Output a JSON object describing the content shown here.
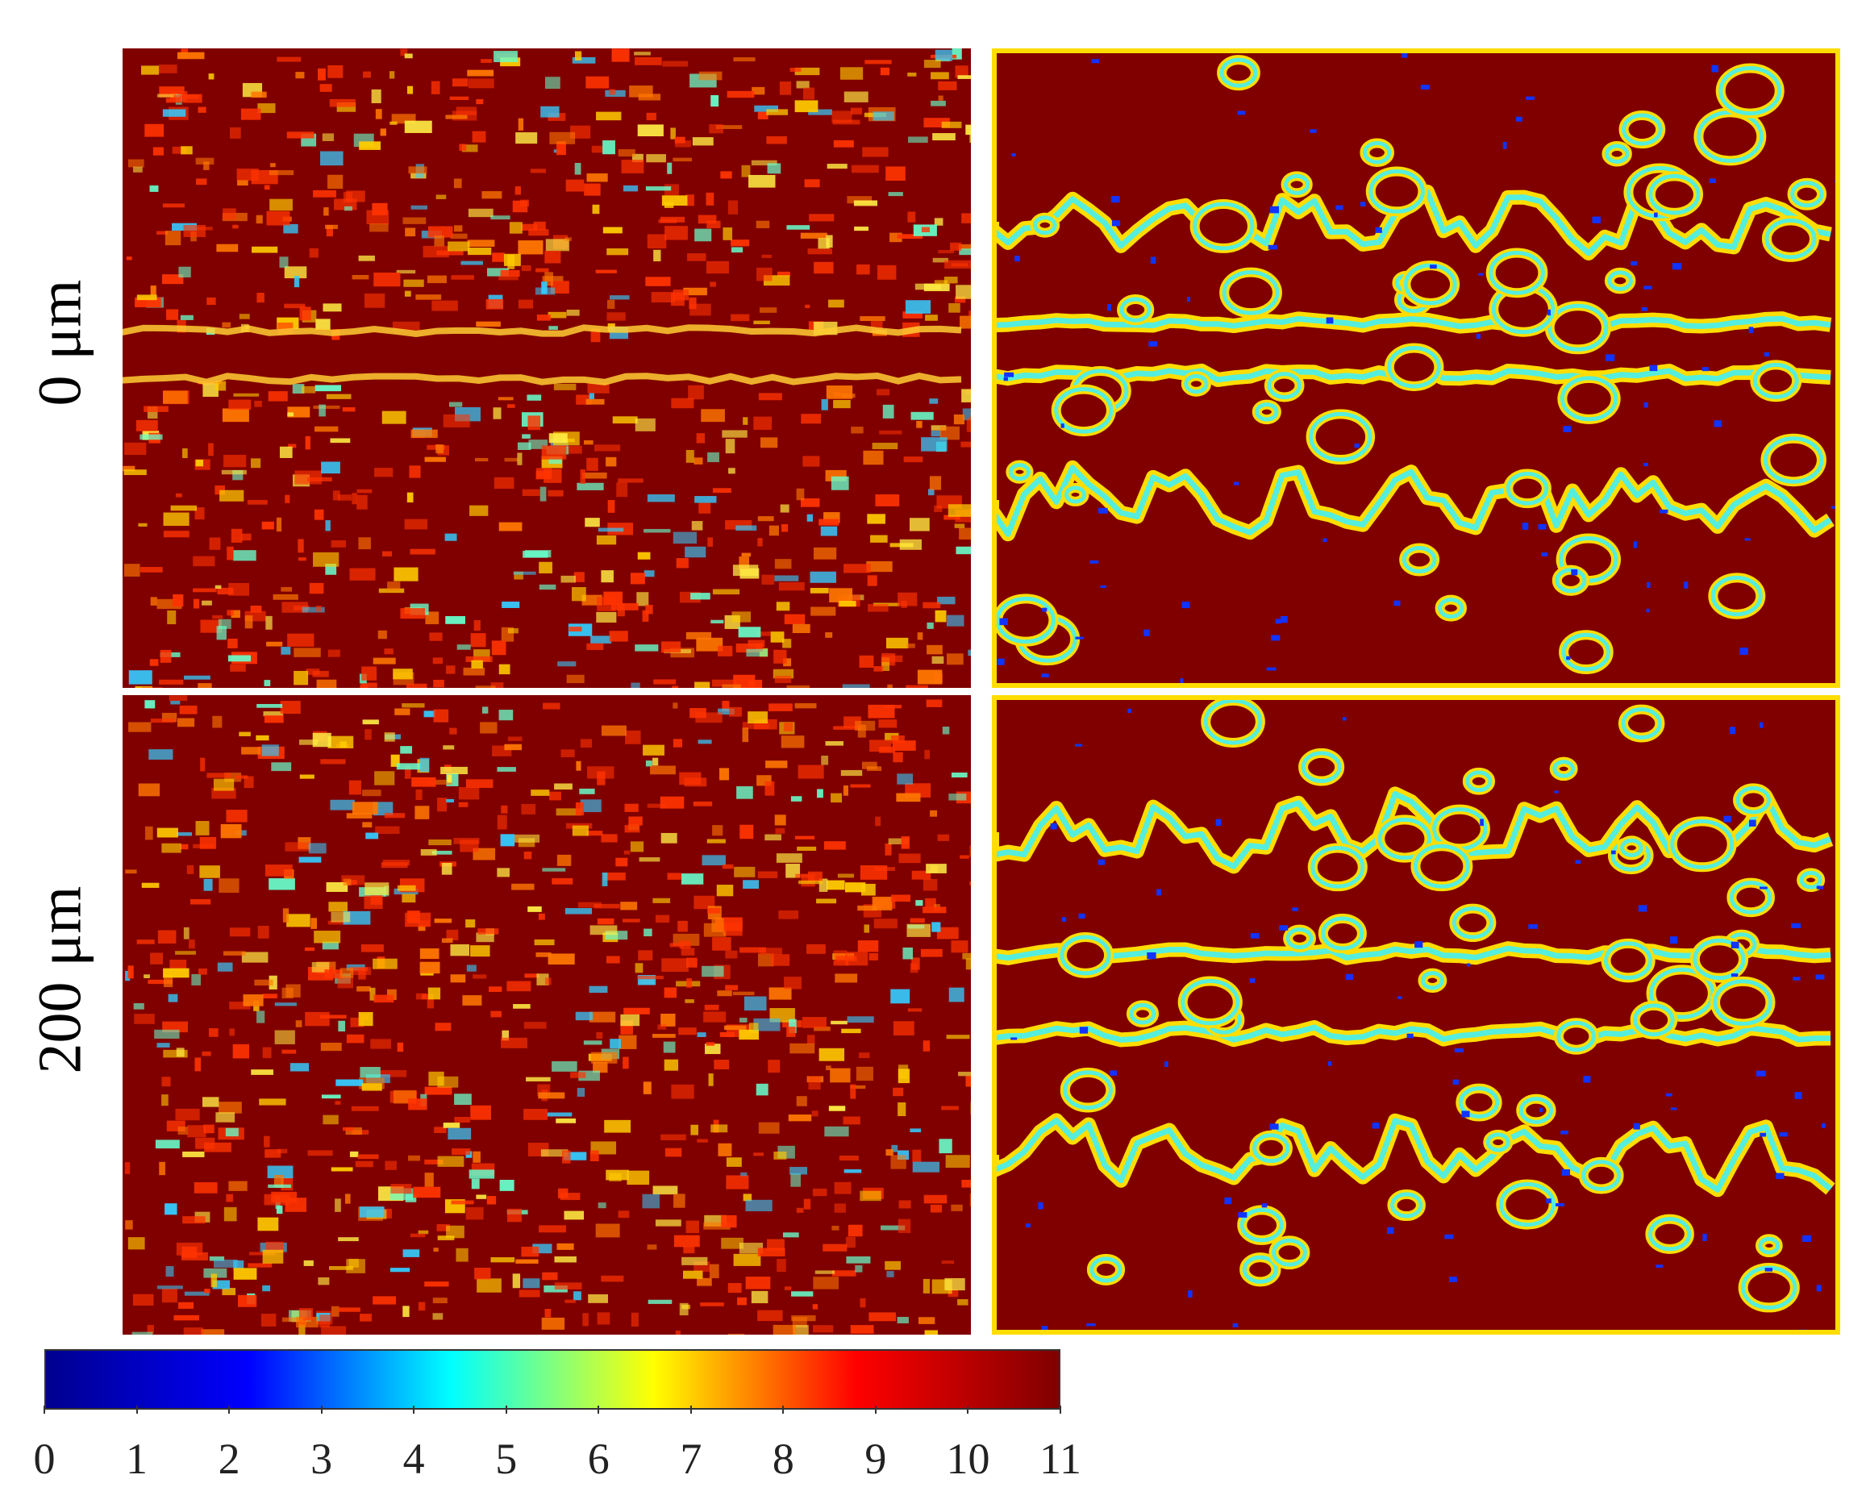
{
  "figure": {
    "row_labels": [
      "0 μm",
      "200 μm"
    ],
    "colorbar": {
      "min": 0,
      "max": 11,
      "ticks": [
        "0",
        "1",
        "2",
        "3",
        "4",
        "5",
        "6",
        "7",
        "8",
        "9",
        "10",
        "11"
      ],
      "colormap": "jet",
      "stops": [
        "#00008f",
        "#0000ff",
        "#00ffff",
        "#ffff00",
        "#ff0000",
        "#800000"
      ]
    },
    "background_color": "#800000"
  },
  "chart_data": {
    "type": "heatmap",
    "layout": "2x2 panel grid",
    "rows": [
      "0 μm",
      "200 μm"
    ],
    "value_range": [
      0,
      11
    ],
    "colorbar_ticks": [
      0,
      1,
      2,
      3,
      4,
      5,
      6,
      7,
      8,
      9,
      10,
      11
    ]
  }
}
